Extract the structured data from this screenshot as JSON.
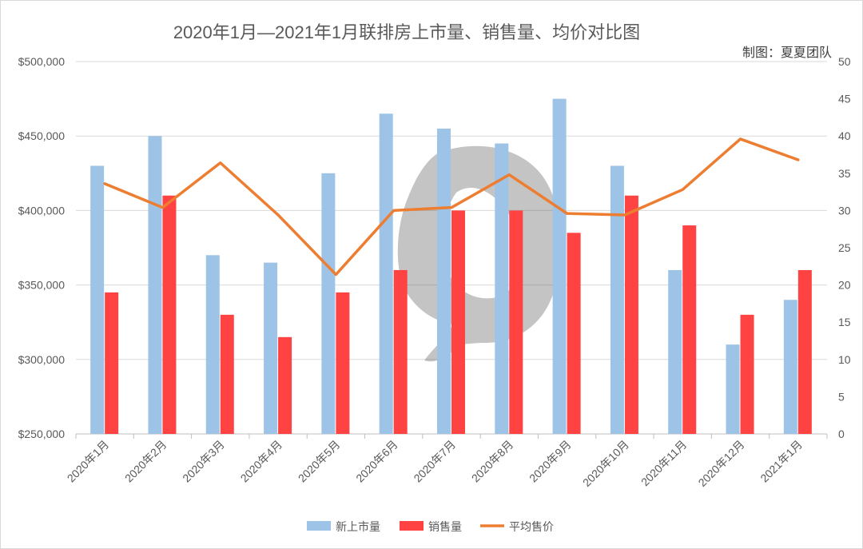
{
  "chart_data": {
    "type": "bar",
    "title": "2020年1月—2021年1月联排房上市量、销售量、均价对比图",
    "credit": "制图：夏夏团队",
    "categories": [
      "2020年1月",
      "2020年2月",
      "2020年3月",
      "2020年4月",
      "2020年5月",
      "2020年6月",
      "2020年7月",
      "2020年8月",
      "2020年9月",
      "2020年10月",
      "2020年11月",
      "2020年12月",
      "2021年1月"
    ],
    "series": [
      {
        "name": "新上市量",
        "type": "bar",
        "axis": "right",
        "color": "#9dc3e6",
        "values": [
          36,
          40,
          24,
          23,
          35,
          43,
          41,
          39,
          45,
          36,
          22,
          12,
          18
        ]
      },
      {
        "name": "销售量",
        "type": "bar",
        "axis": "right",
        "color": "#ff4343",
        "values": [
          19,
          32,
          16,
          13,
          19,
          22,
          30,
          30,
          27,
          32,
          28,
          16,
          22
        ]
      },
      {
        "name": "平均售价",
        "type": "line",
        "axis": "left",
        "color": "#ed7d31",
        "values": [
          418000,
          402000,
          432000,
          397000,
          357000,
          400000,
          402000,
          424000,
          398000,
          397000,
          414000,
          448000,
          434000
        ]
      }
    ],
    "y_left": {
      "min": 250000,
      "max": 500000,
      "step": 50000,
      "tick_labels": [
        "$250,000",
        "$300,000",
        "$350,000",
        "$400,000",
        "$450,000",
        "$500,000"
      ]
    },
    "y_right": {
      "min": 0,
      "max": 50,
      "step": 5,
      "tick_labels": [
        "0",
        "5",
        "10",
        "15",
        "20",
        "25",
        "30",
        "35",
        "40",
        "45",
        "50"
      ]
    },
    "grid": true,
    "legend_position": "bottom"
  }
}
